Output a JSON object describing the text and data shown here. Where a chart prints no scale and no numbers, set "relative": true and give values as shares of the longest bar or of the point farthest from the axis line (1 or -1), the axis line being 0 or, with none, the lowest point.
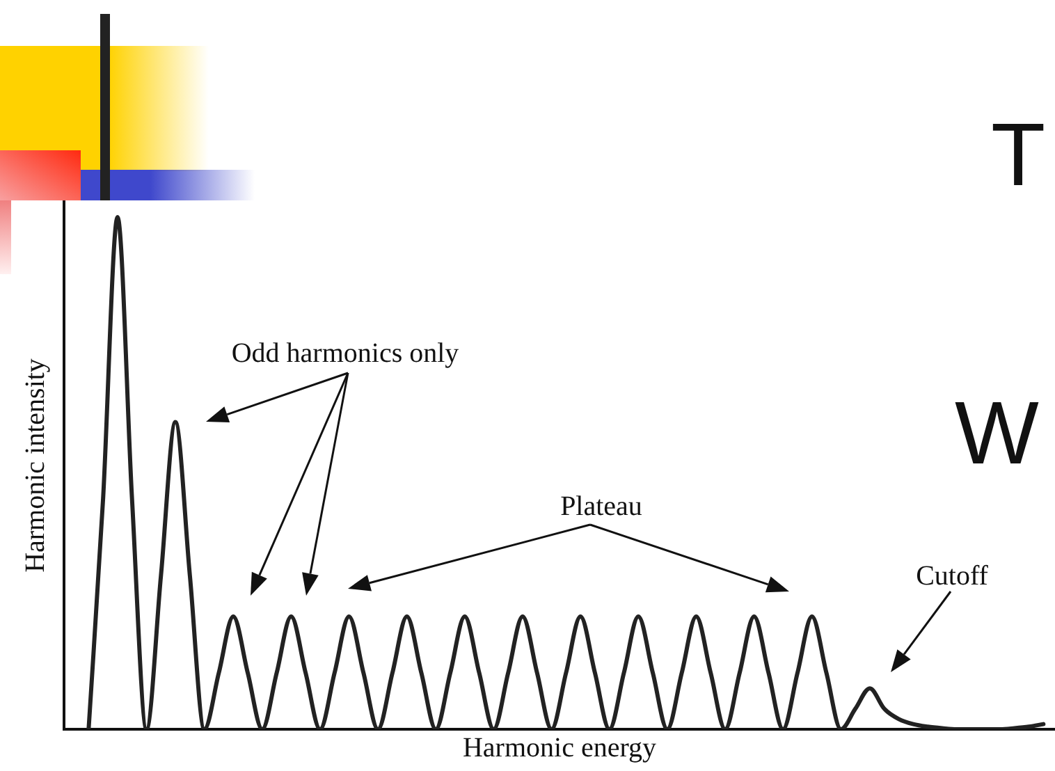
{
  "chart_data": {
    "type": "line",
    "relative": true,
    "xlabel": "Harmonic energy",
    "ylabel": "Harmonic intensity",
    "annotations": [
      "Odd harmonics only",
      "Plateau",
      "Cutoff",
      "T",
      "W"
    ],
    "categories": [
      null,
      null,
      null,
      null,
      null,
      null,
      null,
      null,
      null,
      null,
      null,
      null,
      null,
      null,
      null,
      null,
      null,
      null,
      null,
      null,
      null,
      null,
      null,
      null,
      null,
      null,
      null,
      null,
      null,
      null,
      null,
      null,
      null,
      null,
      null,
      null,
      null,
      null,
      null,
      null,
      null,
      null,
      null,
      null,
      null,
      null,
      null,
      null,
      null,
      null,
      null,
      null,
      null,
      null,
      null,
      null,
      null,
      null,
      null,
      null,
      null,
      null,
      null,
      null,
      null,
      null,
      null
    ],
    "series": [
      {
        "color": "#222222",
        "values": [
          0,
          0.45,
          1,
          0.45,
          0,
          0.3,
          0.6,
          0.3,
          0,
          0.11,
          0.22,
          0.11,
          0,
          0.11,
          0.22,
          0.11,
          0,
          0.11,
          0.22,
          0.11,
          0,
          0.11,
          0.22,
          0.11,
          0,
          0.11,
          0.22,
          0.11,
          0,
          0.11,
          0.22,
          0.11,
          0,
          0.11,
          0.22,
          0.11,
          0,
          0.11,
          0.22,
          0.11,
          0,
          0.11,
          0.22,
          0.11,
          0,
          0.11,
          0.22,
          0.11,
          0,
          0.11,
          0.22,
          0.11,
          0,
          0.04,
          0.08,
          0.04,
          0.02,
          0.01,
          0.005,
          0.002,
          0,
          0,
          0,
          0,
          0.002,
          0.005,
          0.01
        ]
      }
    ],
    "grid": false,
    "legend": false,
    "marker": "none",
    "line_style": "solid"
  }
}
